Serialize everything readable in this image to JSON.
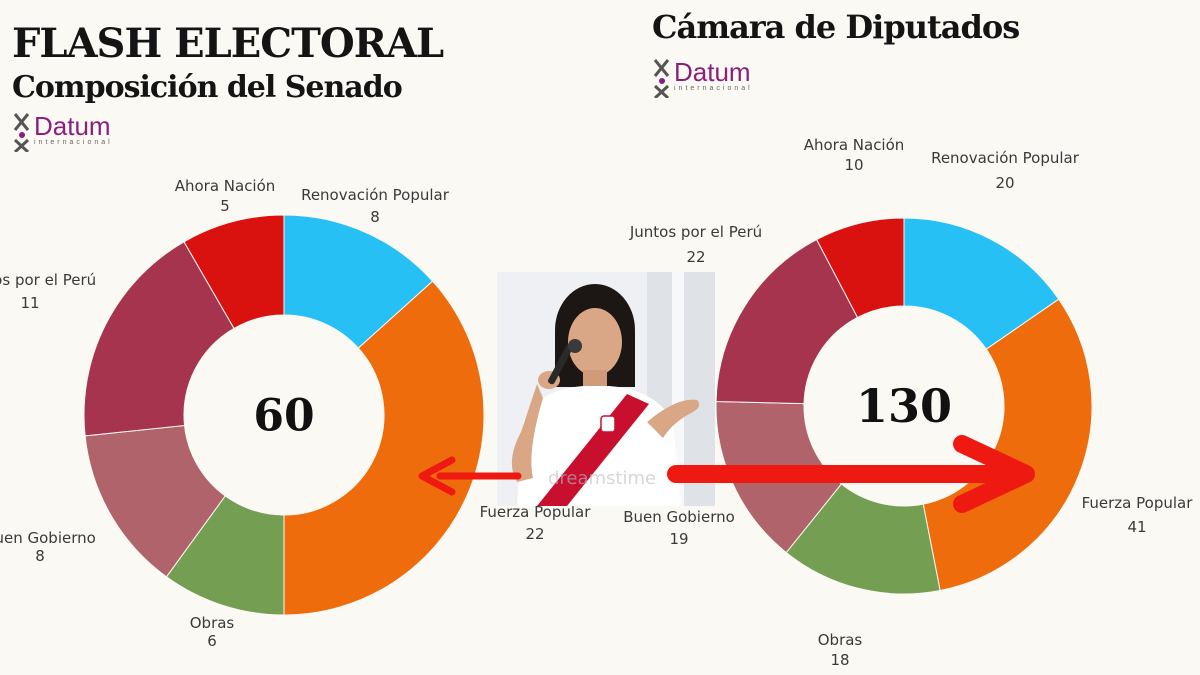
{
  "header": {
    "title": "FLASH ELECTORAL",
    "subtitle": "Composición del Senado",
    "right_title": "Cámara de Diputados"
  },
  "logo": {
    "name": "Datum",
    "tagline": "internacional"
  },
  "colors": {
    "Ahora Nación": "#d9120f",
    "Renovación Popular": "#27c0f5",
    "Fuerza Popular": "#ee6c0c",
    "Obras": "#749f52",
    "Buen Gobierno": "#b0636b",
    "Juntos por el Perú": "#a6344f",
    "arrow": "#ee1a12"
  },
  "photo": {
    "watermark": "dreamstime"
  },
  "chart_data": [
    {
      "type": "pie",
      "title": "Composición del Senado",
      "center_label": "60",
      "slices": [
        {
          "label": "Renovación Popular",
          "value": 8
        },
        {
          "label": "Fuerza Popular",
          "value": 22
        },
        {
          "label": "Obras",
          "value": 6
        },
        {
          "label": "Buen Gobierno",
          "value": 8
        },
        {
          "label": "Juntos por el Perú",
          "value": 11
        },
        {
          "label": "Ahora Nación",
          "value": 5
        }
      ]
    },
    {
      "type": "pie",
      "title": "Cámara de Diputados",
      "center_label": "130",
      "slices": [
        {
          "label": "Renovación Popular",
          "value": 20
        },
        {
          "label": "Fuerza Popular",
          "value": 41
        },
        {
          "label": "Obras",
          "value": 18
        },
        {
          "label": "Buen Gobierno",
          "value": 19
        },
        {
          "label": "Juntos por el Perú",
          "value": 22
        },
        {
          "label": "Ahora Nación",
          "value": 10
        }
      ]
    }
  ]
}
